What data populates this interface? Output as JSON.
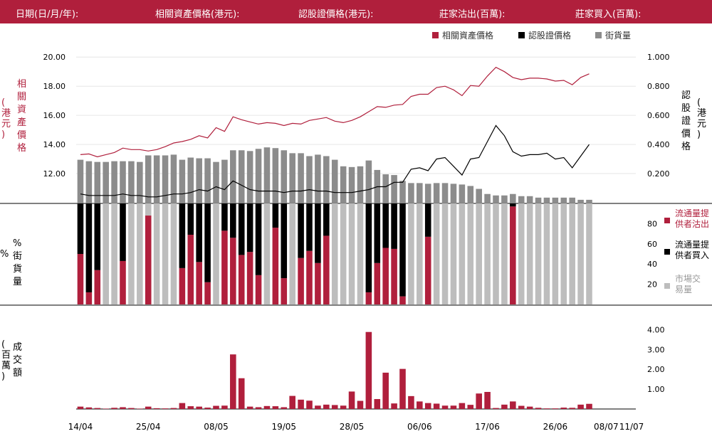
{
  "header": {
    "date_label": "日期(日/月/年):",
    "underlying_label": "相關資產價格(港元):",
    "warrant_label": "認股證價格(港元):",
    "mm_sell_label": "莊家沽出(百萬):",
    "mm_buy_label": "莊家買入(百萬):"
  },
  "colors": {
    "header_bg": "#b01f3c",
    "underlying": "#b01f3c",
    "warrant": "#000000",
    "outstanding": "#8c8c8c",
    "sell": "#b01f3c",
    "buy": "#000000",
    "market": "#bdbdbd",
    "turnover": "#b01f3c"
  },
  "chart_data": [
    {
      "type": "line+bar",
      "legend": [
        "相關資產價格",
        "認股證價格",
        "街貨量"
      ],
      "left_axis_title": "相關資產價格 (港元)",
      "right_axis_title": "認股證價格 (港元)",
      "left_ticks": [
        "20.00",
        "18.00",
        "16.00",
        "14.00",
        "12.00"
      ],
      "left_tick_values": [
        20,
        18,
        16,
        14,
        12
      ],
      "right_ticks": [
        "1.000",
        "0.800",
        "0.600",
        "0.400",
        "0.200"
      ],
      "right_tick_values": [
        1.0,
        0.8,
        0.6,
        0.4,
        0.2
      ],
      "ylim_left": [
        10,
        20.5
      ],
      "ylim_right": [
        0,
        1.05
      ],
      "underlying": [
        13.3,
        13.35,
        13.15,
        13.3,
        13.45,
        13.75,
        13.65,
        13.65,
        13.55,
        13.65,
        13.85,
        14.1,
        14.2,
        14.35,
        14.6,
        14.45,
        15.15,
        14.9,
        15.9,
        15.7,
        15.55,
        15.4,
        15.5,
        15.45,
        15.3,
        15.45,
        15.4,
        15.65,
        15.75,
        15.85,
        15.6,
        15.5,
        15.65,
        15.9,
        16.25,
        16.6,
        16.55,
        16.7,
        16.75,
        17.3,
        17.45,
        17.45,
        17.9,
        18.0,
        17.75,
        17.35,
        18.05,
        18.0,
        18.7,
        19.3,
        19.0,
        18.6,
        18.45,
        18.55,
        18.55,
        18.5,
        18.35,
        18.4,
        18.1,
        18.6,
        18.85
      ],
      "warrant": [
        0.06,
        0.05,
        0.05,
        0.05,
        0.05,
        0.06,
        0.05,
        0.05,
        0.04,
        0.04,
        0.05,
        0.06,
        0.06,
        0.07,
        0.09,
        0.08,
        0.11,
        0.09,
        0.15,
        0.12,
        0.09,
        0.08,
        0.08,
        0.08,
        0.07,
        0.08,
        0.08,
        0.09,
        0.08,
        0.08,
        0.07,
        0.07,
        0.07,
        0.08,
        0.09,
        0.11,
        0.11,
        0.14,
        0.14,
        0.23,
        0.24,
        0.22,
        0.3,
        0.31,
        0.25,
        0.19,
        0.3,
        0.31,
        0.42,
        0.53,
        0.46,
        0.35,
        0.32,
        0.33,
        0.33,
        0.34,
        0.3,
        0.31,
        0.24,
        0.32,
        0.4
      ],
      "outstanding_left_units": [
        12.95,
        12.85,
        12.8,
        12.8,
        12.85,
        12.85,
        12.85,
        12.8,
        13.25,
        13.25,
        13.25,
        13.3,
        12.95,
        13.1,
        13.05,
        13.05,
        12.8,
        12.95,
        13.6,
        13.6,
        13.55,
        13.7,
        13.8,
        13.75,
        13.6,
        13.4,
        13.4,
        13.2,
        13.3,
        13.2,
        12.95,
        12.5,
        12.45,
        12.5,
        12.9,
        12.25,
        11.95,
        11.9,
        11.5,
        11.35,
        11.35,
        11.3,
        11.35,
        11.35,
        11.3,
        11.25,
        11.15,
        10.95,
        10.6,
        10.5,
        10.5,
        10.6,
        10.45,
        10.45,
        10.35,
        10.35,
        10.35,
        10.35,
        10.35,
        10.2,
        10.2
      ]
    },
    {
      "type": "stacked-bar",
      "axis_title": "% 街貨量",
      "ticks": [
        "80",
        "60",
        "40",
        "20"
      ],
      "tick_values": [
        80,
        60,
        40,
        20
      ],
      "ylim": [
        0,
        100
      ],
      "legend": [
        "流通量提供者沽出",
        "流通量提供者買入",
        "市場交易量"
      ],
      "series": [
        {
          "name": "流通量提供者沽出",
          "values": [
            50.0,
            12.0,
            34.0,
            0.0,
            0.0,
            43.0,
            0.0,
            0.0,
            88.0,
            0.0,
            0.0,
            0.0,
            36.0,
            69.0,
            42.0,
            22.0,
            0.0,
            73.0,
            66.0,
            49.0,
            52.0,
            29.0,
            0.0,
            76.0,
            26.0,
            0.0,
            46.0,
            53.0,
            41.0,
            68.0,
            0.0,
            0.0,
            0.0,
            0.0,
            12.0,
            41.0,
            56.0,
            55.0,
            8.0,
            0.0,
            0.0,
            67.0,
            0.0,
            0.0,
            0.0,
            0.0,
            0.0,
            0.0,
            0.0,
            0.0,
            0.0,
            97.0,
            0.0,
            0.0,
            0.0,
            0.0,
            0.0,
            0.0,
            0.0,
            0.0,
            0.0
          ]
        },
        {
          "name": "流通量提供者買入",
          "values": [
            50.0,
            88.0,
            66.0,
            0.0,
            0.0,
            57.0,
            0.0,
            0.0,
            0.0,
            0.0,
            0.0,
            0.0,
            64.0,
            31.0,
            58.0,
            78.0,
            0.0,
            27.0,
            34.0,
            51.0,
            48.0,
            71.0,
            0.0,
            24.0,
            74.0,
            0.0,
            54.0,
            47.0,
            59.0,
            32.0,
            0.0,
            0.0,
            0.0,
            0.0,
            88.0,
            59.0,
            44.0,
            45.0,
            92.0,
            0.0,
            0.0,
            33.0,
            0.0,
            0.0,
            0.0,
            0.0,
            0.0,
            0.0,
            0.0,
            0.0,
            0.0,
            3.0,
            0.0,
            0.0,
            0.0,
            0.0,
            0.0,
            0.0,
            0.0,
            0.0,
            0.0
          ]
        },
        {
          "name": "市場交易量",
          "values": [
            0.0,
            0.0,
            0.0,
            100.0,
            100.0,
            0.0,
            100.0,
            100.0,
            12.0,
            100.0,
            100.0,
            100.0,
            0.0,
            0.0,
            0.0,
            0.0,
            100.0,
            0.0,
            0.0,
            0.0,
            0.0,
            0.0,
            100.0,
            0.0,
            0.0,
            100.0,
            0.0,
            0.0,
            0.0,
            0.0,
            100.0,
            100.0,
            100.0,
            100.0,
            0.0,
            0.0,
            0.0,
            0.0,
            0.0,
            100.0,
            100.0,
            0.0,
            100.0,
            100.0,
            100.0,
            100.0,
            100.0,
            100.0,
            100.0,
            100.0,
            100.0,
            0.0,
            100.0,
            100.0,
            100.0,
            100.0,
            100.0,
            100.0,
            100.0,
            100.0,
            100.0
          ]
        }
      ]
    },
    {
      "type": "bar",
      "axis_title": "成交額 (百萬)",
      "ticks": [
        "4.00",
        "3.00",
        "2.00",
        "1.00"
      ],
      "tick_values": [
        4,
        3,
        2,
        1
      ],
      "ylim": [
        0,
        4.3
      ],
      "values": [
        0.12,
        0.08,
        0.05,
        0.02,
        0.06,
        0.09,
        0.05,
        0.02,
        0.12,
        0.04,
        0.03,
        0.05,
        0.3,
        0.14,
        0.12,
        0.07,
        0.16,
        0.17,
        2.75,
        1.55,
        0.12,
        0.09,
        0.15,
        0.14,
        0.09,
        0.66,
        0.47,
        0.42,
        0.17,
        0.22,
        0.2,
        0.17,
        0.88,
        0.41,
        3.88,
        0.5,
        1.83,
        0.28,
        2.02,
        0.65,
        0.38,
        0.3,
        0.27,
        0.17,
        0.17,
        0.3,
        0.21,
        0.78,
        0.86,
        0.05,
        0.22,
        0.38,
        0.16,
        0.12,
        0.06,
        0.03,
        0.03,
        0.07,
        0.06,
        0.22,
        0.26
      ]
    }
  ],
  "x_labels": [
    {
      "text": "14/04",
      "index": 0
    },
    {
      "text": "25/04",
      "index": 8
    },
    {
      "text": "08/05",
      "index": 16
    },
    {
      "text": "19/05",
      "index": 24
    },
    {
      "text": "28/05",
      "index": 32
    },
    {
      "text": "06/06",
      "index": 40
    },
    {
      "text": "17/06",
      "index": 48
    },
    {
      "text": "26/06",
      "index": 56
    },
    {
      "text": "08/07",
      "index": 62
    },
    {
      "text": "11/07",
      "index": 65
    }
  ],
  "n_slots": 66
}
